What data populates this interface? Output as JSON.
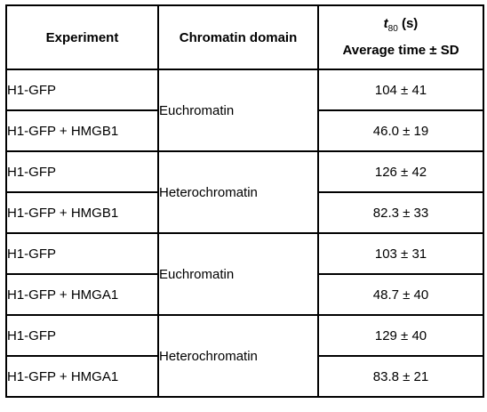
{
  "table": {
    "headers": {
      "experiment": "Experiment",
      "domain": "Chromatin domain",
      "time_symbol": "t",
      "time_subscript": "80",
      "time_unit": "(s)",
      "time_line2": "Average time ± SD"
    },
    "groups": [
      {
        "domain": "Euchromatin",
        "rows": [
          {
            "experiment": "H1-GFP",
            "time": "104 ± 41"
          },
          {
            "experiment": "H1-GFP + HMGB1",
            "time": "46.0 ± 19"
          }
        ]
      },
      {
        "domain": "Heterochromatin",
        "rows": [
          {
            "experiment": "H1-GFP",
            "time": "126 ± 42"
          },
          {
            "experiment": "H1-GFP + HMGB1",
            "time": "82.3 ± 33"
          }
        ]
      },
      {
        "domain": "Euchromatin",
        "rows": [
          {
            "experiment": "H1-GFP",
            "time": "103 ± 31"
          },
          {
            "experiment": "H1-GFP + HMGA1",
            "time": "48.7 ± 40"
          }
        ]
      },
      {
        "domain": "Heterochromatin",
        "rows": [
          {
            "experiment": "H1-GFP",
            "time": "129 ± 40"
          },
          {
            "experiment": "H1-GFP + HMGA1",
            "time": "83.8 ± 21"
          }
        ]
      }
    ]
  }
}
